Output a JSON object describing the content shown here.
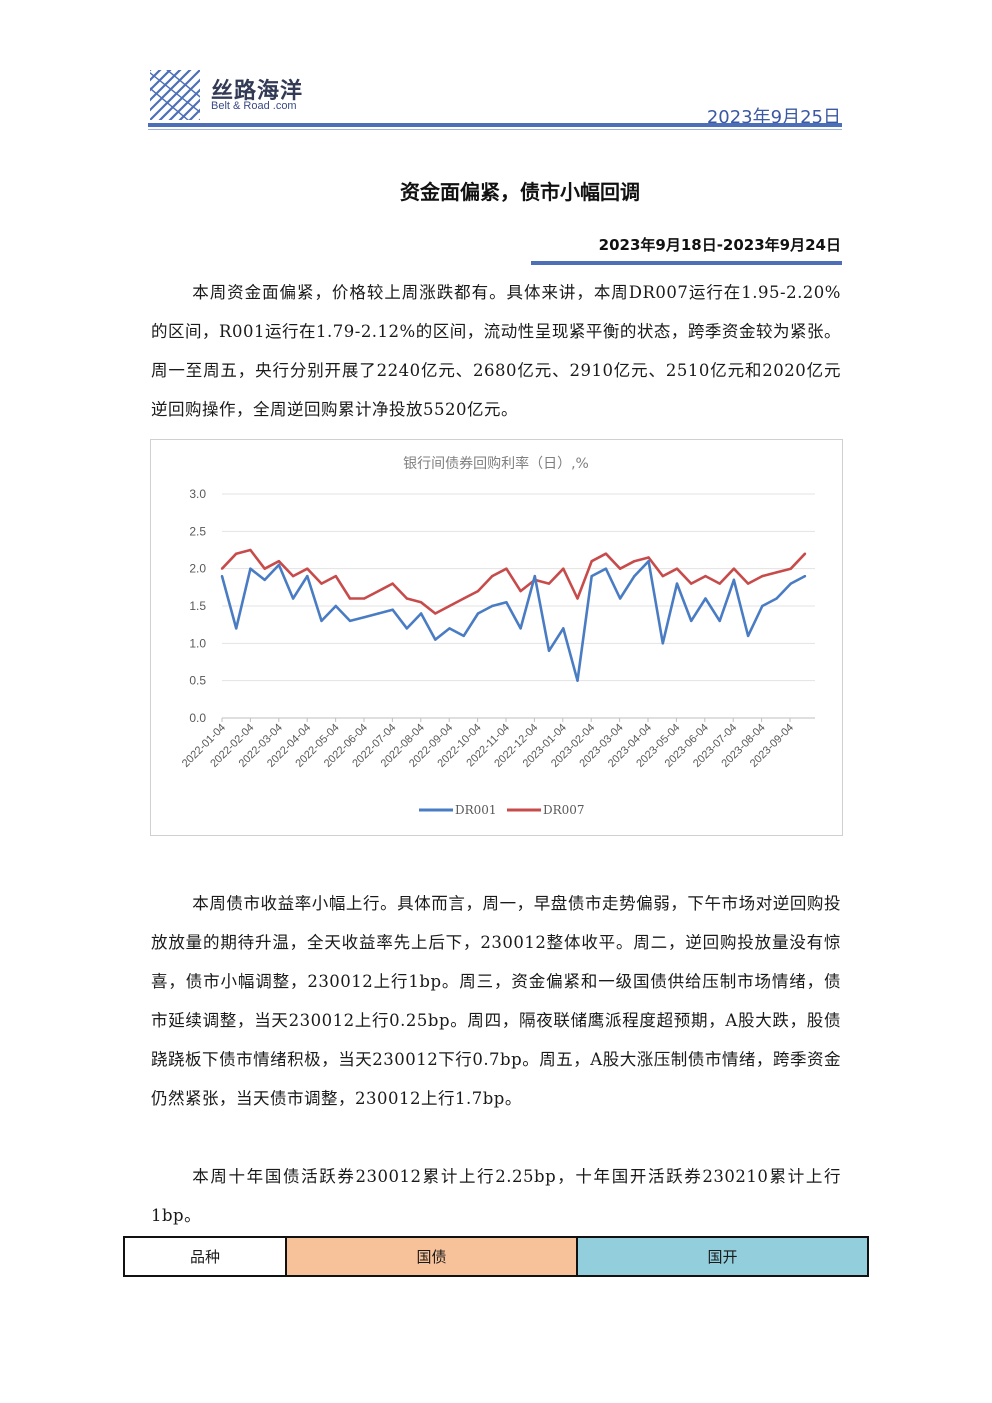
{
  "header": {
    "brand_cn": "丝路海洋",
    "brand_en": "Belt & Road .com",
    "date": "2023年9月25日"
  },
  "title": "资金面偏紧，债市小幅回调",
  "period": "2023年9月18日-2023年9月24日",
  "paragraphs": {
    "p1": "本周资金面偏紧，价格较上周涨跌都有。具体来讲，本周DR007运行在1.95-2.20%的区间，R001运行在1.79-2.12%的区间，流动性呈现紧平衡的状态，跨季资金较为紧张。周一至周五，央行分别开展了2240亿元、2680亿元、2910亿元、2510亿元和2020亿元逆回购操作，全周逆回购累计净投放5520亿元。",
    "p2": "本周债市收益率小幅上行。具体而言，周一，早盘债市走势偏弱，下午市场对逆回购投放放量的期待升温，全天收益率先上后下，230012整体收平。周二，逆回购投放量没有惊喜，债市小幅调整，230012上行1bp。周三，资金偏紧和一级国债供给压制市场情绪，债市延续调整，当天230012上行0.25bp。周四，隔夜联储鹰派程度超预期，A股大跌，股债跷跷板下债市情绪积极，当天230012下行0.7bp。周五，A股大涨压制债市情绪，跨季资金仍然紧张，当天债市调整，230012上行1.7bp。",
    "p3": "本周十年国债活跃券230012累计上行2.25bp，十年国开活跃券230210累计上行1bp。"
  },
  "table": {
    "headers": [
      "品种",
      "国债",
      "国开"
    ],
    "colors": [
      "#ffffff",
      "#f7c29a",
      "#93cedd"
    ]
  },
  "chart_data": {
    "type": "line",
    "title": "银行间债券回购利率（日）,%",
    "ylim": [
      0,
      3.0
    ],
    "yticks": [
      "0.0",
      "0.5",
      "1.0",
      "1.5",
      "2.0",
      "2.5",
      "3.0"
    ],
    "x_ticks": [
      "2022-01-04",
      "2022-02-04",
      "2022-03-04",
      "2022-04-04",
      "2022-05-04",
      "2022-06-04",
      "2022-07-04",
      "2022-08-04",
      "2022-09-04",
      "2022-10-04",
      "2022-11-04",
      "2022-12-04",
      "2023-01-04",
      "2023-02-04",
      "2023-03-04",
      "2023-04-04",
      "2023-05-04",
      "2023-06-04",
      "2023-07-04",
      "2023-08-04",
      "2023-09-04"
    ],
    "x": [
      "2022-01",
      "2022-01",
      "2022-02",
      "2022-02",
      "2022-03",
      "2022-03",
      "2022-04",
      "2022-04",
      "2022-05",
      "2022-05",
      "2022-06",
      "2022-06",
      "2022-07",
      "2022-07",
      "2022-08",
      "2022-08",
      "2022-09",
      "2022-09",
      "2022-10",
      "2022-10",
      "2022-11",
      "2022-11",
      "2022-12",
      "2022-12",
      "2023-01",
      "2023-01",
      "2023-02",
      "2023-02",
      "2023-03",
      "2023-03",
      "2023-04",
      "2023-04",
      "2023-05",
      "2023-05",
      "2023-06",
      "2023-06",
      "2023-07",
      "2023-07",
      "2023-08",
      "2023-08",
      "2023-09",
      "2023-09"
    ],
    "series": [
      {
        "name": "DR001",
        "color": "#4a7cc4",
        "values": [
          1.9,
          1.2,
          2.0,
          1.85,
          2.05,
          1.6,
          1.9,
          1.3,
          1.5,
          1.3,
          1.35,
          1.4,
          1.45,
          1.2,
          1.4,
          1.05,
          1.2,
          1.1,
          1.4,
          1.5,
          1.55,
          1.2,
          1.9,
          0.9,
          1.2,
          0.5,
          1.9,
          2.0,
          1.6,
          1.9,
          2.1,
          1.0,
          1.8,
          1.3,
          1.6,
          1.3,
          1.85,
          1.1,
          1.5,
          1.6,
          1.8,
          1.9
        ]
      },
      {
        "name": "DR007",
        "color": "#c84b4b",
        "values": [
          2.0,
          2.2,
          2.25,
          2.0,
          2.1,
          1.9,
          2.0,
          1.8,
          1.9,
          1.6,
          1.6,
          1.7,
          1.8,
          1.6,
          1.55,
          1.4,
          1.5,
          1.6,
          1.7,
          1.9,
          2.0,
          1.7,
          1.85,
          1.8,
          2.0,
          1.6,
          2.1,
          2.2,
          2.0,
          2.1,
          2.15,
          1.9,
          2.0,
          1.8,
          1.9,
          1.8,
          2.0,
          1.8,
          1.9,
          1.95,
          2.0,
          2.2
        ]
      }
    ],
    "legend": "bottom",
    "grid": true
  }
}
